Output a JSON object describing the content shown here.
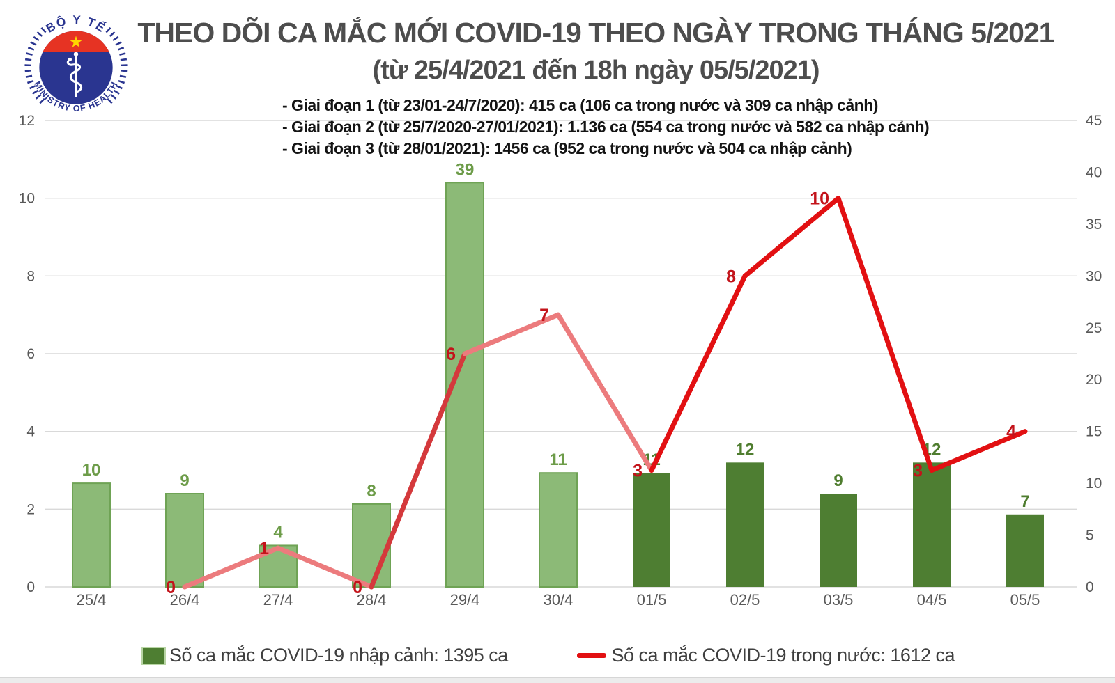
{
  "logo": {
    "top_text": "BỘ Y TẾ",
    "bottom_text": "MINISTRY OF HEALTH",
    "colors": {
      "ring_blue": "#2a3590",
      "flag_red": "#e63323",
      "star_yellow": "#ffd400",
      "globe_navy": "#2a3590"
    }
  },
  "header": {
    "title": "THEO DÕI CA MẮC MỚI COVID-19 THEO NGÀY TRONG THÁNG 5/2021",
    "subtitle": "(từ 25/4/2021 đến 18h ngày 05/5/2021)",
    "bullets": [
      "- Giai đoạn 1 (từ 23/01-24/7/2020): 415 ca (106 ca trong nước và 309 ca nhập cảnh)",
      "- Giai đoạn 2 (từ 25/7/2020-27/01/2021): 1.136 ca (554 ca trong nước và 582 ca nhập cảnh)",
      "- Giai đoạn 3 (từ 28/01/2021): 1456 ca (952 ca trong nước và 504 ca nhập cảnh)"
    ]
  },
  "chart_data": {
    "type": "combo-bar-line",
    "categories": [
      "25/4",
      "26/4",
      "27/4",
      "28/4",
      "29/4",
      "30/4",
      "01/5",
      "02/5",
      "03/5",
      "04/5",
      "05/5"
    ],
    "series": [
      {
        "name": "Số ca mắc COVID-19 nhập cảnh",
        "chart": "bar",
        "axis": "right",
        "values": [
          10,
          9,
          4,
          8,
          39,
          11,
          11,
          12,
          9,
          12,
          7
        ],
        "bar_groups": [
          "april",
          "april",
          "april",
          "april",
          "april",
          "april",
          "may",
          "may",
          "may",
          "may",
          "may"
        ]
      },
      {
        "name": "Số ca mắc COVID-19 trong nước",
        "chart": "line",
        "axis": "left",
        "values": [
          null,
          0,
          1,
          0,
          6,
          7,
          3,
          8,
          10,
          3,
          4
        ],
        "segment_tones": [
          "early",
          "early",
          "mid",
          "early",
          "early",
          "late",
          "late",
          "late",
          "late"
        ]
      }
    ],
    "left_axis": {
      "min": 0,
      "max": 12,
      "ticks": [
        0,
        2,
        4,
        6,
        8,
        10,
        12
      ]
    },
    "right_axis": {
      "min": 0,
      "max": 45,
      "ticks": [
        0,
        5,
        10,
        15,
        20,
        25,
        30,
        35,
        40,
        45
      ]
    },
    "grid": true,
    "legend_position": "bottom",
    "colors": {
      "bar_april": "#8cba77",
      "bar_april_border": "#6fa355",
      "bar_may": "#4e7e32",
      "bar_label_april": "#6d9c49",
      "bar_label_may": "#4f7d2f",
      "line_early": "#ec7b7d",
      "line_mid": "#d4393c",
      "line_late": "#e21012",
      "line_label": "#c3131a",
      "grid": "#d9d9d9",
      "axis_text": "#595959"
    }
  },
  "legend": [
    {
      "type": "bar",
      "label": "Số ca mắc COVID-19 nhập cảnh: 1395 ca"
    },
    {
      "type": "line",
      "label": "Số ca mắc COVID-19 trong nước: 1612 ca"
    }
  ]
}
